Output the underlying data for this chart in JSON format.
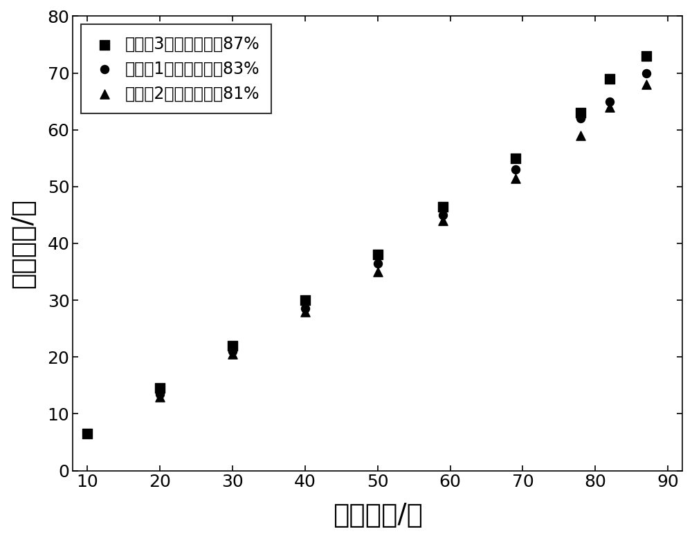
{
  "series1_label": "实施例3样品激光效率87%",
  "series2_label": "实施例1样品激光效率83%",
  "series3_label": "实施例2样品激光效率81%",
  "series1_x": [
    10,
    20,
    30,
    40,
    50,
    59,
    69,
    78,
    82,
    87
  ],
  "series1_y": [
    6.5,
    14.5,
    22,
    30,
    38,
    46.5,
    55,
    63,
    69,
    73
  ],
  "series2_x": [
    20,
    30,
    40,
    50,
    59,
    69,
    78,
    82,
    87
  ],
  "series2_y": [
    13.5,
    21,
    28.5,
    36.5,
    45,
    53,
    62,
    65,
    70
  ],
  "series3_x": [
    20,
    30,
    40,
    50,
    59,
    69,
    78,
    82,
    87
  ],
  "series3_y": [
    13,
    20.5,
    28,
    35,
    44,
    51.5,
    59,
    64,
    68
  ],
  "xlabel": "泵浦功率/瓦",
  "ylabel": "输出功率/瓦",
  "xlim": [
    8,
    92
  ],
  "ylim": [
    0,
    80
  ],
  "xticks": [
    10,
    20,
    30,
    40,
    50,
    60,
    70,
    80,
    90
  ],
  "yticks": [
    0,
    10,
    20,
    30,
    40,
    50,
    60,
    70,
    80
  ],
  "marker1": "s",
  "marker2": "o",
  "marker3": "^",
  "color": "#000000",
  "markersize1": 90,
  "markersize2": 75,
  "markersize3": 90,
  "xlabel_fontsize": 28,
  "ylabel_fontsize": 28,
  "tick_fontsize": 18,
  "legend_fontsize": 17
}
